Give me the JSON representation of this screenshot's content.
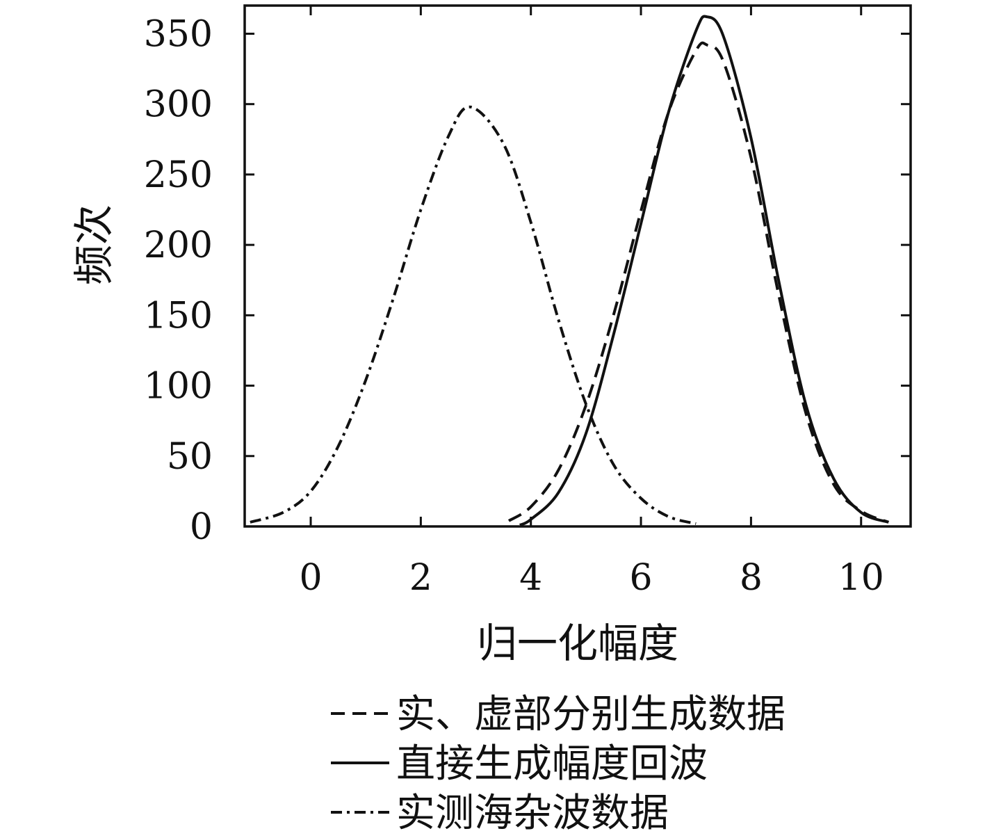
{
  "chart_data": {
    "type": "line",
    "xlabel": "归一化幅度",
    "ylabel": "频次",
    "xlim": [
      -1.2,
      10.9
    ],
    "ylim": [
      0,
      370
    ],
    "xticks": [
      0,
      2,
      4,
      6,
      8,
      10
    ],
    "yticks": [
      0,
      50,
      100,
      150,
      200,
      250,
      300,
      350
    ],
    "grid": false,
    "legend_position": "below-plot",
    "series": [
      {
        "name": "实、虚部分别生成数据",
        "style": "dashed",
        "color": "#111111",
        "x": [
          3.6,
          4.0,
          4.5,
          5.0,
          5.5,
          6.0,
          6.5,
          7.0,
          7.2,
          7.5,
          8.0,
          8.5,
          9.0,
          9.5,
          10.0,
          10.5
        ],
        "y": [
          4,
          14,
          40,
          86,
          150,
          224,
          294,
          338,
          342,
          330,
          262,
          165,
          80,
          30,
          11,
          3
        ]
      },
      {
        "name": "直接生成幅度回波",
        "style": "solid",
        "color": "#111111",
        "x": [
          3.8,
          4.0,
          4.5,
          5.0,
          5.5,
          6.0,
          6.5,
          7.0,
          7.2,
          7.5,
          8.0,
          8.5,
          9.0,
          9.5,
          10.0,
          10.5
        ],
        "y": [
          1,
          5,
          24,
          66,
          136,
          215,
          294,
          352,
          362,
          348,
          276,
          175,
          86,
          34,
          10,
          3
        ]
      },
      {
        "name": "实测海杂波数据",
        "style": "dash-dot",
        "color": "#111111",
        "x": [
          -1.1,
          -0.5,
          0.0,
          0.5,
          1.0,
          1.5,
          2.0,
          2.5,
          2.9,
          3.5,
          4.0,
          4.5,
          5.0,
          5.5,
          6.0,
          6.5,
          7.0
        ],
        "y": [
          3,
          10,
          25,
          57,
          104,
          162,
          225,
          277,
          298,
          272,
          216,
          147,
          87,
          44,
          20,
          7,
          2
        ]
      }
    ]
  }
}
